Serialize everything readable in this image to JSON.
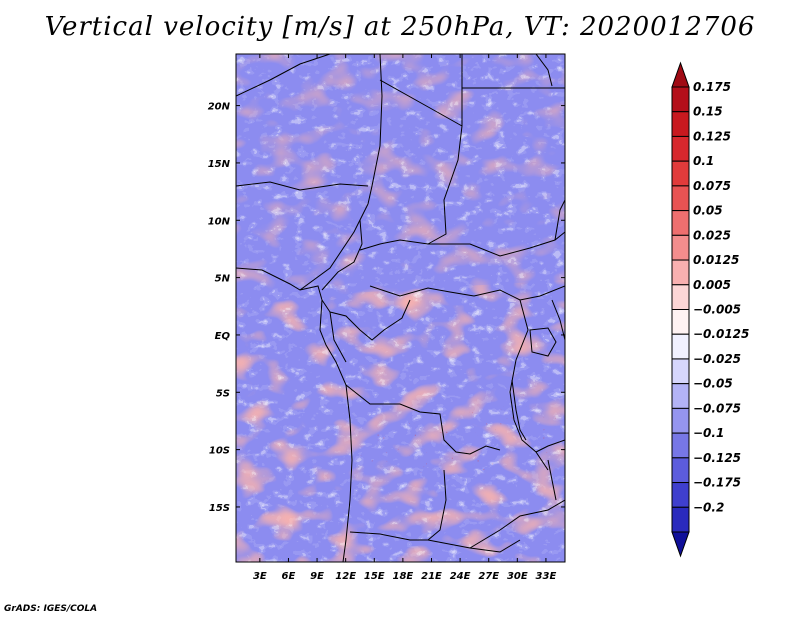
{
  "title": "Vertical velocity [m/s] at 250hPa, VT: 2020012706",
  "credit": "GrADS: IGES/COLA",
  "map": {
    "variable": "Vertical velocity",
    "units": "m/s",
    "level": "250hPa",
    "valid_time": "2020012706",
    "lon_labels": [
      "3E",
      "6E",
      "9E",
      "12E",
      "15E",
      "18E",
      "21E",
      "24E",
      "27E",
      "30E",
      "33E"
    ],
    "lat_labels": [
      "20N",
      "15N",
      "10N",
      "5N",
      "EQ",
      "5S",
      "10S",
      "15S"
    ],
    "lon_values": [
      3,
      6,
      9,
      12,
      15,
      18,
      21,
      24,
      27,
      30,
      33
    ],
    "lat_values": [
      20,
      15,
      10,
      5,
      0,
      -5,
      -10,
      -15
    ]
  },
  "colorbar": {
    "labels": [
      "0.175",
      "0.15",
      "0.125",
      "0.1",
      "0.075",
      "0.05",
      "0.025",
      "0.0125",
      "0.005",
      "−0.005",
      "−0.0125",
      "−0.025",
      "−0.05",
      "−0.075",
      "−0.1",
      "−0.125",
      "−0.175",
      "−0.2"
    ],
    "colors": [
      "#b40f1a",
      "#c8191f",
      "#d7282d",
      "#e13b3b",
      "#e85353",
      "#ee6f6f",
      "#f38d8d",
      "#f8b0b0",
      "#fcd6d6",
      "#fff3f3",
      "#f1f1ff",
      "#d6d6fc",
      "#b3b3f6",
      "#9595ef",
      "#7777e6",
      "#5c5cdc",
      "#3f3fce",
      "#2a2abd",
      "#1818a8"
    ],
    "max_arrow_color": "#a00a14",
    "min_arrow_color": "#10109a"
  },
  "colors": {
    "background": "#ffffff",
    "border": "#000000",
    "field_blue": "#8a8af0",
    "field_red": "#e87070"
  }
}
